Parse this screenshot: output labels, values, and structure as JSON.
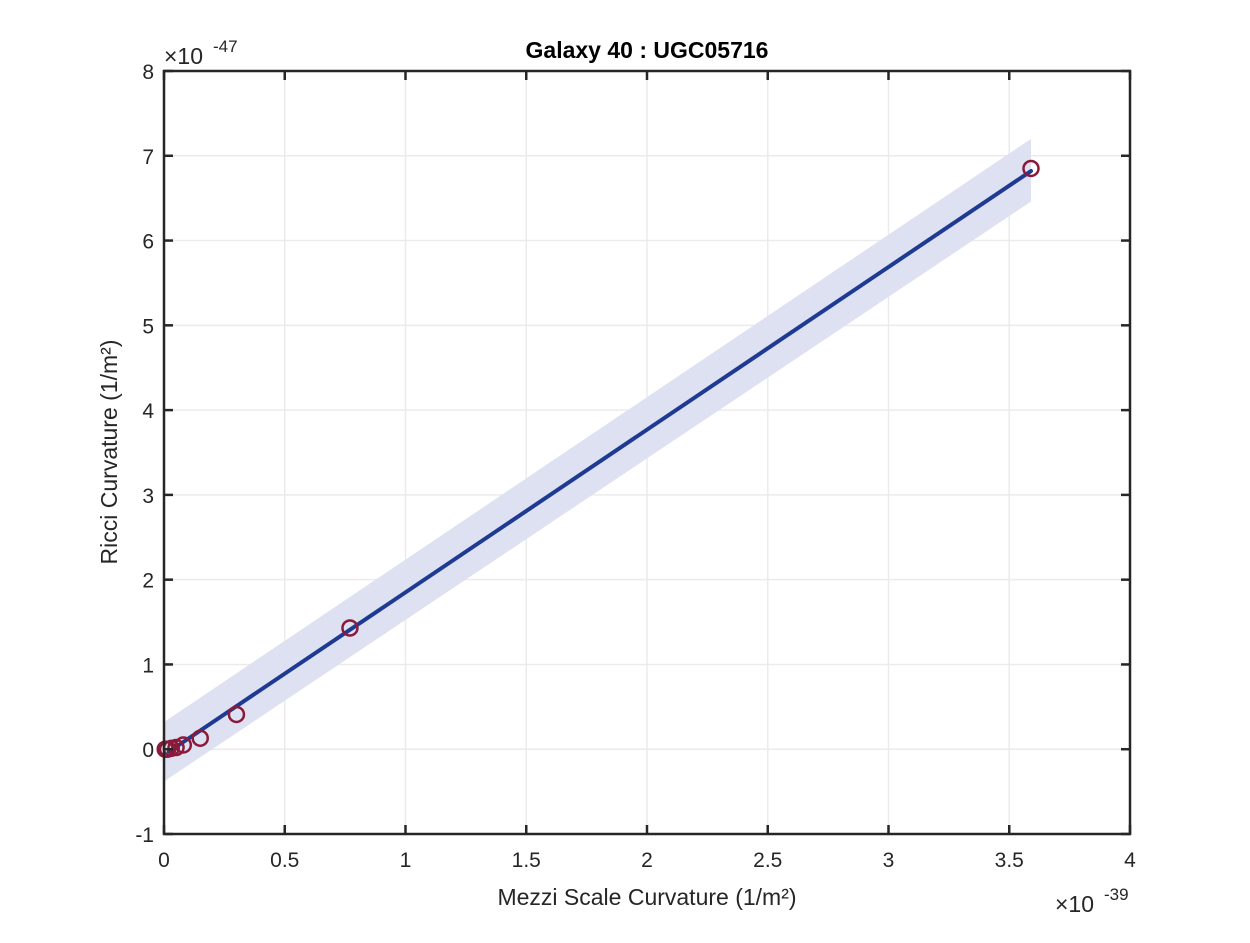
{
  "chart_data": {
    "type": "scatter",
    "title": "Galaxy 40 : UGC05716",
    "xlabel": "Mezzi Scale Curvature (1/m²)",
    "ylabel": "Ricci Curvature (1/m²)",
    "x_exponent_label": {
      "base": "×10",
      "exp": "-39"
    },
    "y_exponent_label": {
      "base": "×10",
      "exp": "-47"
    },
    "xlim": [
      0,
      4
    ],
    "ylim": [
      -1,
      8
    ],
    "xticks": [
      0,
      0.5,
      1,
      1.5,
      2,
      2.5,
      3,
      3.5,
      4
    ],
    "xtick_labels": [
      "0",
      "0.5",
      "1",
      "1.5",
      "2",
      "2.5",
      "3",
      "3.5",
      "4"
    ],
    "yticks": [
      -1,
      0,
      1,
      2,
      3,
      4,
      5,
      6,
      7,
      8
    ],
    "ytick_labels": [
      "-1",
      "0",
      "1",
      "2",
      "3",
      "4",
      "5",
      "6",
      "7",
      "8"
    ],
    "grid": true,
    "legend": "none",
    "colors": {
      "points": "#8b1a3a",
      "fit_line": "#1f3a93",
      "band": "#dde1f1",
      "grid": "#ebebeb",
      "axes": "#262626"
    },
    "points": [
      {
        "x": 0.005,
        "y": 0.0
      },
      {
        "x": 0.015,
        "y": 0.0
      },
      {
        "x": 0.03,
        "y": 0.01
      },
      {
        "x": 0.05,
        "y": 0.02
      },
      {
        "x": 0.08,
        "y": 0.05
      },
      {
        "x": 0.15,
        "y": 0.13
      },
      {
        "x": 0.3,
        "y": 0.41
      },
      {
        "x": 0.77,
        "y": 1.43
      },
      {
        "x": 3.59,
        "y": 6.85
      }
    ],
    "fit_line": {
      "x": [
        0.02,
        3.59
      ],
      "y": [
        -0.03,
        6.82
      ]
    },
    "confidence_band": {
      "x": [
        0.0,
        3.59
      ],
      "upper": [
        0.32,
        7.2
      ],
      "lower": [
        -0.38,
        6.46
      ]
    }
  }
}
